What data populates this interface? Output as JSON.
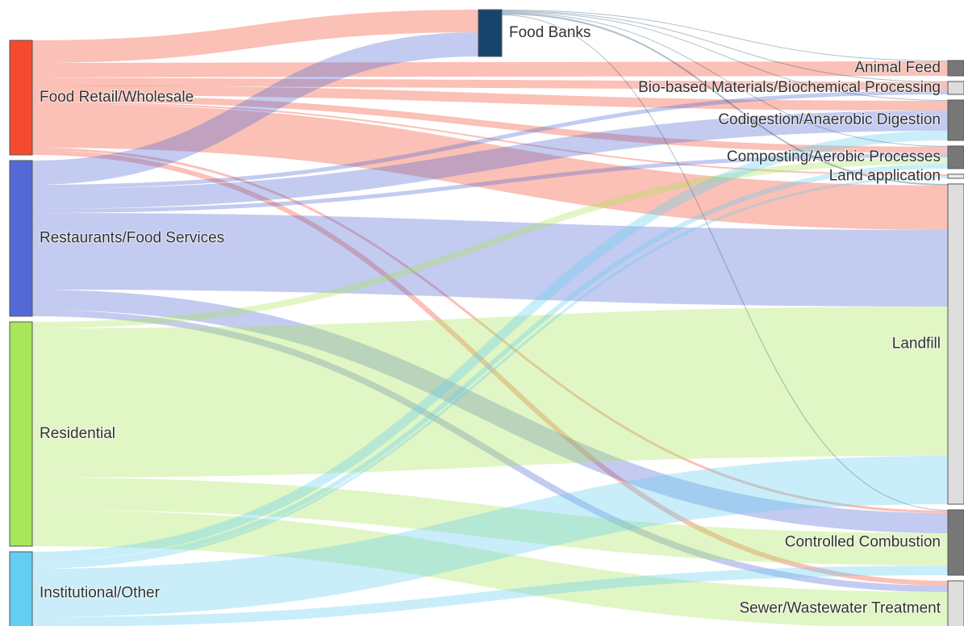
{
  "chart_data": {
    "type": "sankey",
    "nodes": [
      {
        "name": "Food Retail/Wholesale",
        "color": "#f44a2f"
      },
      {
        "name": "Restaurants/Food Services",
        "color": "#5469d4"
      },
      {
        "name": "Residential",
        "color": "#a8e65a"
      },
      {
        "name": "Institutional/Other",
        "color": "#63cdf2"
      },
      {
        "name": "Food Banks",
        "color": "#17446b"
      },
      {
        "name": "Animal Feed",
        "color": "#777777"
      },
      {
        "name": "Bio-based Materials/Biochemical Processing",
        "color": "#dddddd"
      },
      {
        "name": "Codigestion/Anaerobic Digestion",
        "color": "#777777"
      },
      {
        "name": "Composting/Aerobic Processes",
        "color": "#777777"
      },
      {
        "name": "Land application",
        "color": "#eeeeee"
      },
      {
        "name": "Landfill",
        "color": "#dddddd"
      },
      {
        "name": "Controlled Combustion",
        "color": "#777777"
      },
      {
        "name": "Sewer/Wastewater Treatment",
        "color": "#dddddd"
      }
    ],
    "links": [
      {
        "source": 0,
        "target": 4,
        "value": 28
      },
      {
        "source": 0,
        "target": 5,
        "value": 18
      },
      {
        "source": 0,
        "target": 6,
        "value": 10
      },
      {
        "source": 0,
        "target": 7,
        "value": 12
      },
      {
        "source": 0,
        "target": 8,
        "value": 8
      },
      {
        "source": 0,
        "target": 9,
        "value": 2
      },
      {
        "source": 0,
        "target": 10,
        "value": 55
      },
      {
        "source": 0,
        "target": 11,
        "value": 3
      },
      {
        "source": 0,
        "target": 12,
        "value": 6
      },
      {
        "source": 1,
        "target": 4,
        "value": 30
      },
      {
        "source": 1,
        "target": 6,
        "value": 5
      },
      {
        "source": 1,
        "target": 7,
        "value": 25
      },
      {
        "source": 1,
        "target": 8,
        "value": 5
      },
      {
        "source": 1,
        "target": 10,
        "value": 95
      },
      {
        "source": 1,
        "target": 11,
        "value": 25
      },
      {
        "source": 1,
        "target": 12,
        "value": 8
      },
      {
        "source": 2,
        "target": 8,
        "value": 8
      },
      {
        "source": 2,
        "target": 10,
        "value": 185
      },
      {
        "source": 2,
        "target": 11,
        "value": 40
      },
      {
        "source": 2,
        "target": 12,
        "value": 45
      },
      {
        "source": 3,
        "target": 7,
        "value": 12
      },
      {
        "source": 3,
        "target": 8,
        "value": 6
      },
      {
        "source": 3,
        "target": 9,
        "value": 3
      },
      {
        "source": 3,
        "target": 10,
        "value": 60
      },
      {
        "source": 3,
        "target": 11,
        "value": 12
      },
      {
        "source": 3,
        "target": 12,
        "value": 10
      },
      {
        "source": 4,
        "target": 5,
        "value": 1
      },
      {
        "source": 4,
        "target": 6,
        "value": 1
      },
      {
        "source": 4,
        "target": 7,
        "value": 1
      },
      {
        "source": 4,
        "target": 8,
        "value": 1
      },
      {
        "source": 4,
        "target": 10,
        "value": 2
      },
      {
        "source": 4,
        "target": 11,
        "value": 1
      }
    ]
  }
}
